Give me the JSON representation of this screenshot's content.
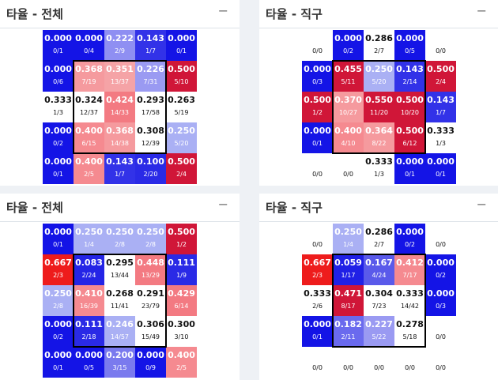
{
  "panels": [
    {
      "title": "타율 - 전체",
      "minimize": "−",
      "rows": [
        [
          {
            "v": "0.000",
            "f": "0/1",
            "c": "#1414e6"
          },
          {
            "v": "0.000",
            "f": "0/4",
            "c": "#1414e6"
          },
          {
            "v": "0.222",
            "f": "2/9",
            "c": "#8f8ff2"
          },
          {
            "v": "0.143",
            "f": "1/7",
            "c": "#3232e8"
          },
          {
            "v": "0.000",
            "f": "0/1",
            "c": "#1414e6"
          }
        ],
        [
          {
            "v": "0.000",
            "f": "0/6",
            "c": "#1414e6"
          },
          {
            "v": "0.368",
            "f": "7/19",
            "c": "#f59a9e"
          },
          {
            "v": "0.351",
            "f": "13/37",
            "c": "#f5a3a6"
          },
          {
            "v": "0.226",
            "f": "7/31",
            "c": "#9a9af2"
          },
          {
            "v": "0.500",
            "f": "5/10",
            "c": "#d01638"
          }
        ],
        [
          {
            "v": "0.333",
            "f": "1/3",
            "c": "#ffffff"
          },
          {
            "v": "0.324",
            "f": "12/37",
            "c": "#ffffff"
          },
          {
            "v": "0.424",
            "f": "14/33",
            "c": "#f37a82"
          },
          {
            "v": "0.293",
            "f": "17/58",
            "c": "#ffffff"
          },
          {
            "v": "0.263",
            "f": "5/19",
            "c": "#ffffff"
          }
        ],
        [
          {
            "v": "0.000",
            "f": "0/2",
            "c": "#1414e6"
          },
          {
            "v": "0.400",
            "f": "6/15",
            "c": "#f58a90"
          },
          {
            "v": "0.368",
            "f": "14/38",
            "c": "#f59a9e"
          },
          {
            "v": "0.308",
            "f": "12/39",
            "c": "#ffffff"
          },
          {
            "v": "0.250",
            "f": "5/20",
            "c": "#aab0f4"
          }
        ],
        [
          {
            "v": "0.000",
            "f": "0/1",
            "c": "#1414e6"
          },
          {
            "v": "0.400",
            "f": "2/5",
            "c": "#f58a90"
          },
          {
            "v": "0.143",
            "f": "1/7",
            "c": "#3232e8"
          },
          {
            "v": "0.100",
            "f": "2/20",
            "c": "#2a2ae6"
          },
          {
            "v": "0.500",
            "f": "2/4",
            "c": "#d01638"
          }
        ]
      ]
    },
    {
      "title": "타율 - 직구",
      "minimize": "−",
      "rows": [
        [
          {
            "v": "",
            "f": "0/0",
            "c": "#ffffff"
          },
          {
            "v": "0.000",
            "f": "0/2",
            "c": "#1414e6"
          },
          {
            "v": "0.286",
            "f": "2/7",
            "c": "#ffffff"
          },
          {
            "v": "0.000",
            "f": "0/5",
            "c": "#1414e6"
          },
          {
            "v": "",
            "f": "0/0",
            "c": "#ffffff"
          }
        ],
        [
          {
            "v": "0.000",
            "f": "0/3",
            "c": "#1414e6"
          },
          {
            "v": "0.455",
            "f": "5/11",
            "c": "#d01638"
          },
          {
            "v": "0.250",
            "f": "5/20",
            "c": "#aab0f4"
          },
          {
            "v": "0.143",
            "f": "2/14",
            "c": "#3232e8"
          },
          {
            "v": "0.500",
            "f": "2/4",
            "c": "#d01638"
          }
        ],
        [
          {
            "v": "0.500",
            "f": "1/2",
            "c": "#d01638"
          },
          {
            "v": "0.370",
            "f": "10/27",
            "c": "#f59a9e"
          },
          {
            "v": "0.550",
            "f": "11/20",
            "c": "#d01638"
          },
          {
            "v": "0.500",
            "f": "10/20",
            "c": "#d01638"
          },
          {
            "v": "0.143",
            "f": "1/7",
            "c": "#3232e8"
          }
        ],
        [
          {
            "v": "0.000",
            "f": "0/1",
            "c": "#1414e6"
          },
          {
            "v": "0.400",
            "f": "4/10",
            "c": "#f58a90"
          },
          {
            "v": "0.364",
            "f": "8/22",
            "c": "#f59a9e"
          },
          {
            "v": "0.500",
            "f": "6/12",
            "c": "#d01638"
          },
          {
            "v": "0.333",
            "f": "1/3",
            "c": "#ffffff"
          }
        ],
        [
          {
            "v": "",
            "f": "0/0",
            "c": "#ffffff"
          },
          {
            "v": "",
            "f": "0/0",
            "c": "#ffffff"
          },
          {
            "v": "0.333",
            "f": "1/3",
            "c": "#ffffff"
          },
          {
            "v": "0.000",
            "f": "0/1",
            "c": "#1414e6"
          },
          {
            "v": "0.000",
            "f": "0/1",
            "c": "#1414e6"
          }
        ]
      ]
    },
    {
      "title": "타율 - 전체",
      "minimize": "−",
      "rows": [
        [
          {
            "v": "0.000",
            "f": "0/1",
            "c": "#1414e6"
          },
          {
            "v": "0.250",
            "f": "1/4",
            "c": "#aab0f4"
          },
          {
            "v": "0.250",
            "f": "2/8",
            "c": "#aab0f4"
          },
          {
            "v": "0.250",
            "f": "2/8",
            "c": "#aab0f4"
          },
          {
            "v": "0.500",
            "f": "1/2",
            "c": "#d01638"
          }
        ],
        [
          {
            "v": "0.667",
            "f": "2/3",
            "c": "#ee1c1c"
          },
          {
            "v": "0.083",
            "f": "2/24",
            "c": "#2424e6"
          },
          {
            "v": "0.295",
            "f": "13/44",
            "c": "#ffffff"
          },
          {
            "v": "0.448",
            "f": "13/29",
            "c": "#f37a82"
          },
          {
            "v": "0.111",
            "f": "1/9",
            "c": "#2a2ae6"
          }
        ],
        [
          {
            "v": "0.250",
            "f": "2/8",
            "c": "#aab0f4"
          },
          {
            "v": "0.410",
            "f": "16/39",
            "c": "#f58a90"
          },
          {
            "v": "0.268",
            "f": "11/41",
            "c": "#ffffff"
          },
          {
            "v": "0.291",
            "f": "23/79",
            "c": "#ffffff"
          },
          {
            "v": "0.429",
            "f": "6/14",
            "c": "#f37a82"
          }
        ],
        [
          {
            "v": "0.000",
            "f": "0/2",
            "c": "#1414e6"
          },
          {
            "v": "0.111",
            "f": "2/18",
            "c": "#2a2ae6"
          },
          {
            "v": "0.246",
            "f": "14/57",
            "c": "#aab0f4"
          },
          {
            "v": "0.306",
            "f": "15/49",
            "c": "#ffffff"
          },
          {
            "v": "0.300",
            "f": "3/10",
            "c": "#ffffff"
          }
        ],
        [
          {
            "v": "0.000",
            "f": "0/1",
            "c": "#1414e6"
          },
          {
            "v": "0.000",
            "f": "0/5",
            "c": "#1414e6"
          },
          {
            "v": "0.200",
            "f": "3/15",
            "c": "#7a7aee"
          },
          {
            "v": "0.000",
            "f": "0/9",
            "c": "#1414e6"
          },
          {
            "v": "0.400",
            "f": "2/5",
            "c": "#f58a90"
          }
        ]
      ]
    },
    {
      "title": "타율 - 직구",
      "minimize": "−",
      "rows": [
        [
          {
            "v": "",
            "f": "0/0",
            "c": "#ffffff"
          },
          {
            "v": "0.250",
            "f": "1/4",
            "c": "#aab0f4"
          },
          {
            "v": "0.286",
            "f": "2/7",
            "c": "#ffffff"
          },
          {
            "v": "0.000",
            "f": "0/2",
            "c": "#1414e6"
          },
          {
            "v": "",
            "f": "0/0",
            "c": "#ffffff"
          }
        ],
        [
          {
            "v": "0.667",
            "f": "2/3",
            "c": "#ee1c1c"
          },
          {
            "v": "0.059",
            "f": "1/17",
            "c": "#2020e6"
          },
          {
            "v": "0.167",
            "f": "4/24",
            "c": "#5a5aea"
          },
          {
            "v": "0.412",
            "f": "7/17",
            "c": "#f58a90"
          },
          {
            "v": "0.000",
            "f": "0/2",
            "c": "#1414e6"
          }
        ],
        [
          {
            "v": "0.333",
            "f": "2/6",
            "c": "#ffffff"
          },
          {
            "v": "0.471",
            "f": "8/17",
            "c": "#d01638"
          },
          {
            "v": "0.304",
            "f": "7/23",
            "c": "#ffffff"
          },
          {
            "v": "0.333",
            "f": "14/42",
            "c": "#ffffff"
          },
          {
            "v": "0.000",
            "f": "0/3",
            "c": "#1414e6"
          }
        ],
        [
          {
            "v": "0.000",
            "f": "0/1",
            "c": "#1414e6"
          },
          {
            "v": "0.182",
            "f": "2/11",
            "c": "#6a6aee"
          },
          {
            "v": "0.227",
            "f": "5/22",
            "c": "#9a9af2"
          },
          {
            "v": "0.278",
            "f": "5/18",
            "c": "#ffffff"
          },
          {
            "v": "",
            "f": "0/0",
            "c": "#ffffff"
          }
        ],
        [
          {
            "v": "",
            "f": "0/0",
            "c": "#ffffff"
          },
          {
            "v": "",
            "f": "0/0",
            "c": "#ffffff"
          },
          {
            "v": "",
            "f": "0/0",
            "c": "#ffffff"
          },
          {
            "v": "",
            "f": "0/0",
            "c": "#ffffff"
          },
          {
            "v": "",
            "f": "0/0",
            "c": "#ffffff"
          }
        ]
      ]
    }
  ]
}
